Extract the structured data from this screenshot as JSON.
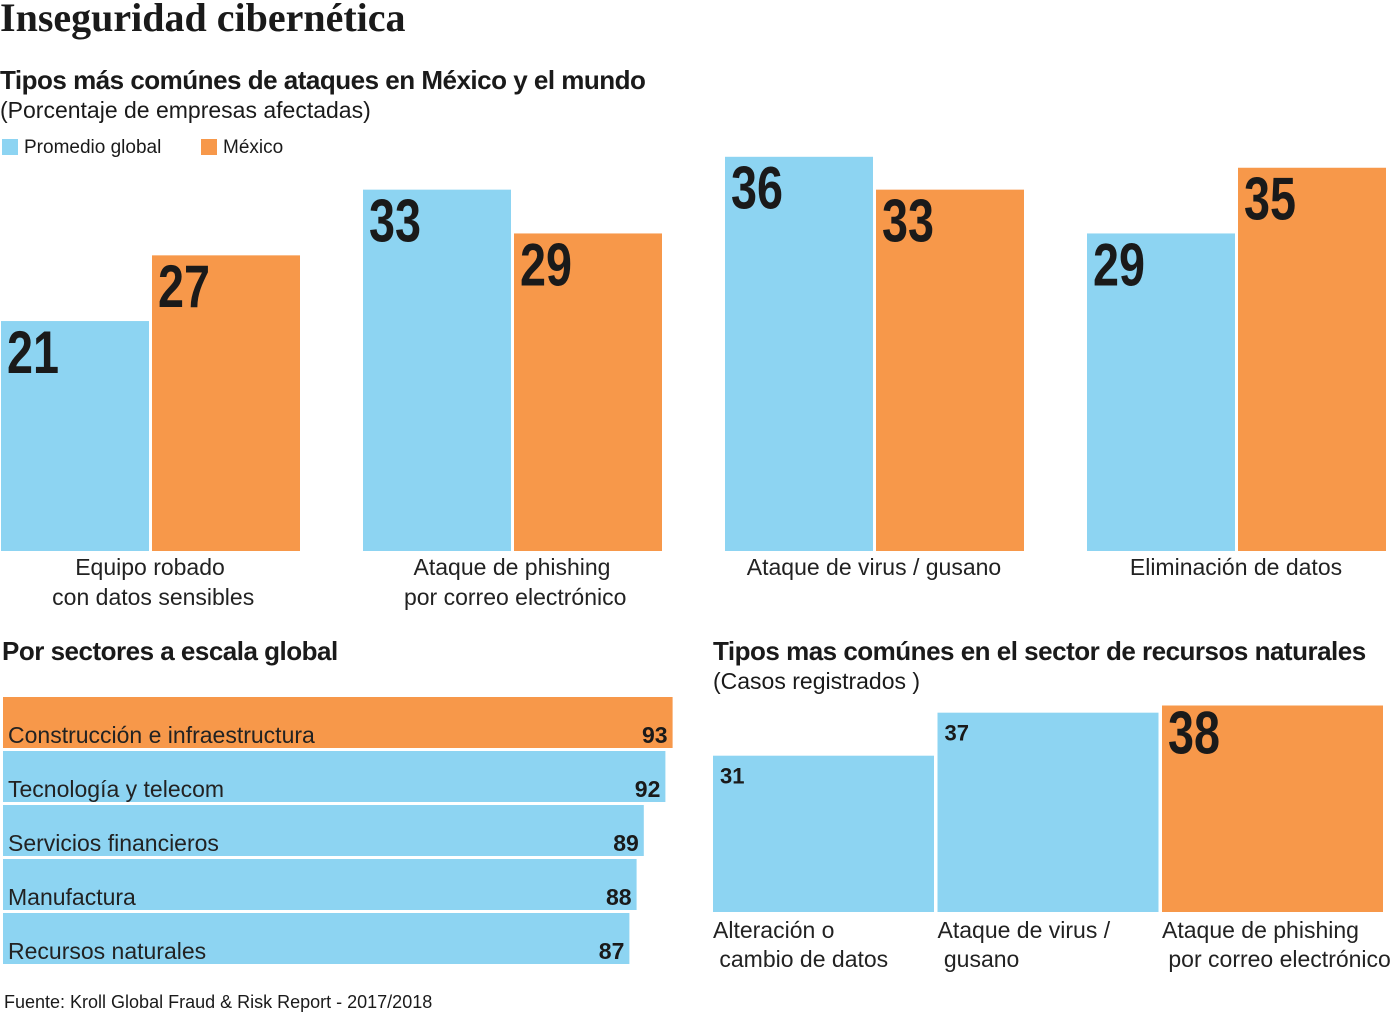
{
  "title": "Inseguridad cibernética",
  "source": "Fuente: Kroll Global Fraud & Risk Report - 2017/2018",
  "chart_data": [
    {
      "type": "bar",
      "title": "Tipos más comúnes de ataques en México y el mundo",
      "subtitle": "(Porcentaje de empresas afectadas)",
      "categories": [
        "Equipo robado\ncon datos sensibles",
        "Ataque de phishing\npor correo electrónico",
        "Ataque de virus / gusano",
        "Eliminación de datos"
      ],
      "series": [
        {
          "name": "Promedio global",
          "color": "#8dd4f2",
          "values": [
            21,
            33,
            36,
            29
          ]
        },
        {
          "name": "México",
          "color": "#f7984a",
          "values": [
            27,
            29,
            33,
            35
          ]
        }
      ],
      "legend": "top-left"
    },
    {
      "type": "barh",
      "title": "Por sectores a escala global",
      "categories": [
        "Construcción e infraestructura",
        "Tecnología y telecom",
        "Servicios financieros",
        "Manufactura",
        "Recursos naturales"
      ],
      "values": [
        93,
        92,
        89,
        88,
        87
      ],
      "colors": [
        "#f7984a",
        "#8dd4f2",
        "#8dd4f2",
        "#8dd4f2",
        "#8dd4f2"
      ]
    },
    {
      "type": "bar",
      "title": "Tipos mas comúnes en el sector de recursos naturales",
      "subtitle": "(Casos registrados )",
      "categories": [
        "Alteración o\ncambio de datos",
        "Ataque de virus /\ngusano",
        "Ataque de phishing\npor correo electrónico"
      ],
      "values": [
        31,
        37,
        38
      ],
      "colors": [
        "#8dd4f2",
        "#8dd4f2",
        "#f7984a"
      ]
    }
  ]
}
